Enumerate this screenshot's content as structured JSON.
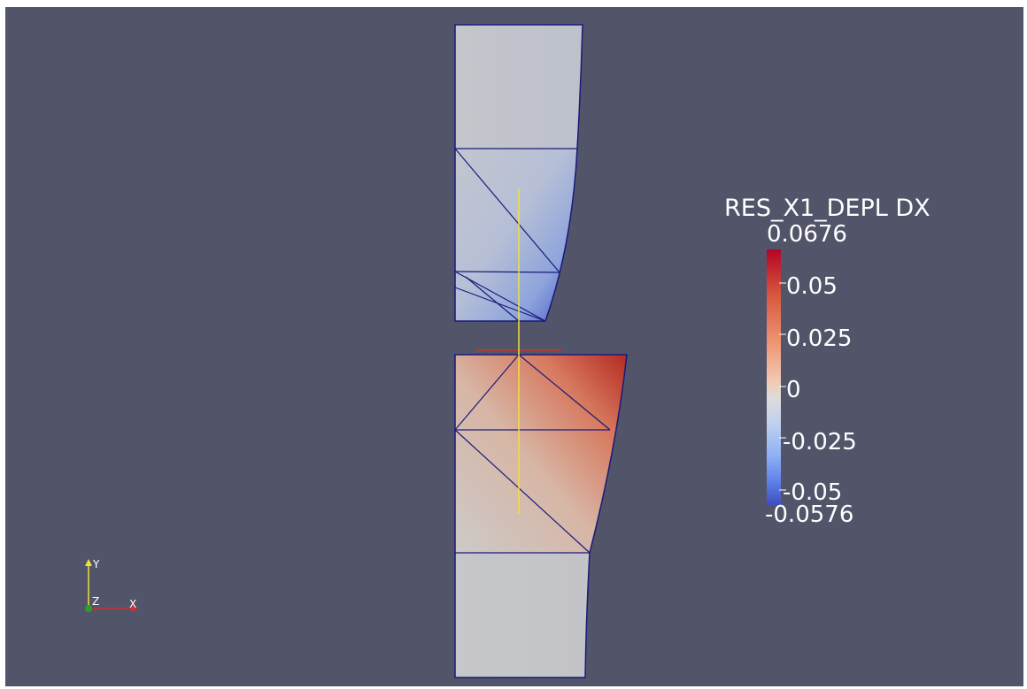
{
  "colorbar": {
    "title": "RES_X1_DEPL DX",
    "max_label": "0.0676",
    "min_label": "-0.0576",
    "range": [
      -0.0576,
      0.0676
    ],
    "colormap": "cool-to-warm",
    "colors": [
      "#3b4cc0",
      "#dddcdc",
      "#b40426"
    ],
    "ticks": [
      {
        "label": "0.05",
        "value": 0.05
      },
      {
        "label": "0.025",
        "value": 0.025
      },
      {
        "label": "0",
        "value": 0
      },
      {
        "label": "-0.025",
        "value": -0.025
      },
      {
        "label": "-0.05",
        "value": -0.05
      }
    ]
  },
  "axes": {
    "x": "X",
    "y": "Y",
    "z": "Z"
  },
  "colors": {
    "background": "#525569",
    "mesh_edges": "#1a1a7a",
    "probe_line": "#f0e040"
  }
}
